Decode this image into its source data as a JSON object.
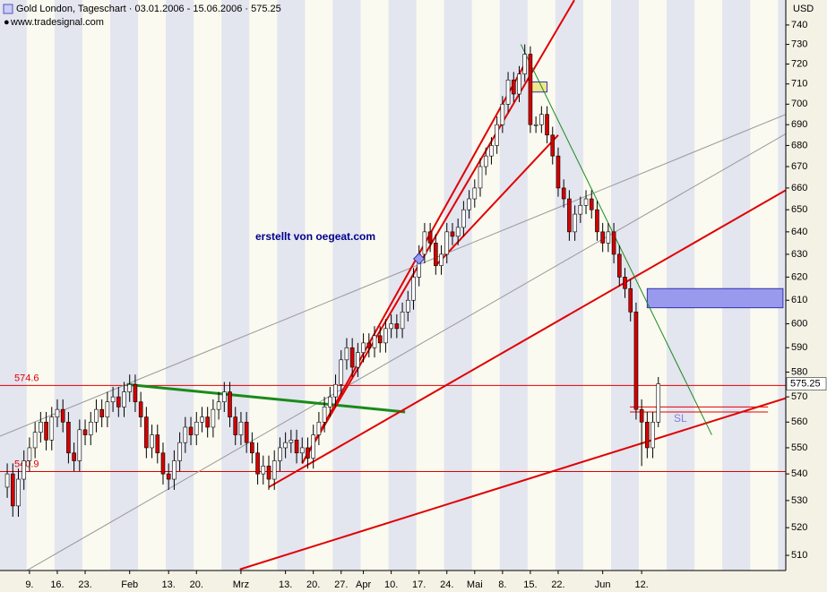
{
  "chart_data": {
    "type": "candlestick",
    "title": "Gold London, Tageschart · 03.01.2006 - 15.06.2006 · 575.25",
    "subtitle": "www.tradesignal.com",
    "y_axis_label": "USD",
    "annotations": [
      "erstellt von oegeat.com",
      "SL"
    ],
    "log_scale": true,
    "up_color": "#ffffff",
    "down_color": "#d40000",
    "wick_color": "#000000",
    "candles": {
      "open": [
        535,
        540,
        528,
        538,
        545,
        550,
        556,
        560,
        553,
        562,
        565,
        560,
        548,
        545,
        557,
        555,
        560,
        565,
        562,
        568,
        570,
        566,
        572,
        575,
        568,
        562,
        550,
        555,
        548,
        540,
        538,
        545,
        552,
        558,
        555,
        560,
        562,
        558,
        565,
        568,
        572,
        562,
        555,
        560,
        552,
        548,
        540,
        543,
        538,
        545,
        550,
        552,
        553,
        548,
        550,
        546,
        555,
        560,
        566,
        570,
        575,
        585,
        590,
        582,
        588,
        592,
        590,
        595,
        592,
        598,
        600,
        598,
        605,
        610,
        620,
        630,
        640,
        635,
        625,
        630,
        640,
        638,
        642,
        650,
        655,
        660,
        670,
        675,
        680,
        690,
        700,
        712,
        705,
        715,
        725,
        690,
        690,
        695,
        685,
        675,
        660,
        655,
        640,
        648,
        652,
        655,
        650,
        640,
        635,
        640,
        630,
        620,
        615,
        605,
        565,
        560,
        550,
        560
      ],
      "high": [
        544,
        544,
        542,
        549,
        554,
        560,
        564,
        564,
        566,
        569,
        569,
        564,
        552,
        561,
        561,
        564,
        569,
        569,
        572,
        574,
        574,
        576,
        579,
        579,
        572,
        566,
        559,
        559,
        552,
        544,
        549,
        556,
        562,
        562,
        564,
        566,
        566,
        569,
        572,
        576,
        576,
        566,
        564,
        564,
        556,
        552,
        547,
        547,
        549,
        554,
        556,
        557,
        557,
        554,
        554,
        559,
        564,
        570,
        574,
        579,
        589,
        594,
        594,
        592,
        596,
        596,
        599,
        599,
        602,
        604,
        604,
        609,
        614,
        624,
        634,
        644,
        644,
        639,
        634,
        644,
        644,
        646,
        654,
        659,
        664,
        674,
        679,
        684,
        694,
        704,
        716,
        716,
        719,
        730,
        729,
        694,
        699,
        699,
        689,
        679,
        664,
        659,
        652,
        656,
        659,
        659,
        654,
        644,
        644,
        644,
        634,
        624,
        619,
        609,
        569,
        564,
        564,
        578
      ],
      "low": [
        531,
        524,
        524,
        534,
        541,
        546,
        552,
        549,
        549,
        558,
        556,
        544,
        541,
        541,
        551,
        551,
        556,
        558,
        558,
        564,
        562,
        562,
        568,
        564,
        558,
        546,
        546,
        544,
        536,
        534,
        534,
        541,
        548,
        551,
        551,
        556,
        554,
        554,
        561,
        564,
        558,
        551,
        551,
        548,
        544,
        536,
        536,
        534,
        534,
        541,
        546,
        548,
        544,
        544,
        542,
        542,
        551,
        556,
        562,
        566,
        571,
        581,
        578,
        578,
        584,
        586,
        586,
        588,
        588,
        594,
        594,
        594,
        601,
        606,
        616,
        626,
        631,
        621,
        621,
        626,
        634,
        634,
        638,
        646,
        651,
        656,
        666,
        671,
        676,
        686,
        696,
        701,
        701,
        711,
        686,
        686,
        686,
        681,
        671,
        656,
        651,
        636,
        636,
        644,
        648,
        646,
        636,
        631,
        631,
        626,
        616,
        611,
        601,
        561,
        543,
        546,
        546,
        558
      ],
      "close": [
        540,
        528,
        538,
        545,
        550,
        556,
        560,
        553,
        562,
        565,
        560,
        548,
        545,
        557,
        555,
        560,
        565,
        562,
        568,
        570,
        566,
        572,
        575,
        568,
        562,
        550,
        555,
        548,
        540,
        538,
        545,
        552,
        558,
        555,
        560,
        562,
        558,
        565,
        568,
        572,
        562,
        555,
        560,
        552,
        548,
        540,
        543,
        538,
        545,
        550,
        552,
        553,
        548,
        550,
        546,
        555,
        560,
        566,
        570,
        575,
        585,
        590,
        582,
        588,
        592,
        590,
        595,
        592,
        598,
        600,
        598,
        605,
        610,
        620,
        630,
        640,
        635,
        625,
        630,
        640,
        638,
        642,
        650,
        655,
        660,
        670,
        675,
        680,
        690,
        700,
        712,
        705,
        715,
        725,
        690,
        690,
        695,
        685,
        675,
        660,
        655,
        640,
        648,
        652,
        655,
        650,
        640,
        635,
        640,
        630,
        620,
        615,
        605,
        565,
        560,
        550,
        560,
        575.25
      ]
    },
    "xlim": [
      -1.3,
      139.9
    ],
    "xticks": [
      {
        "value": 4,
        "label": "9."
      },
      {
        "value": 9,
        "label": "16."
      },
      {
        "value": 14,
        "label": "23."
      },
      {
        "value": 22,
        "label": "Feb"
      },
      {
        "value": 29,
        "label": "13."
      },
      {
        "value": 34,
        "label": "20."
      },
      {
        "value": 42,
        "label": "Mrz"
      },
      {
        "value": 50,
        "label": "13."
      },
      {
        "value": 55,
        "label": "20."
      },
      {
        "value": 60,
        "label": "27."
      },
      {
        "value": 64,
        "label": "Apr"
      },
      {
        "value": 69,
        "label": "10."
      },
      {
        "value": 74,
        "label": "17."
      },
      {
        "value": 79,
        "label": "24."
      },
      {
        "value": 84,
        "label": "Mai"
      },
      {
        "value": 89,
        "label": "8."
      },
      {
        "value": 94,
        "label": "15."
      },
      {
        "value": 99,
        "label": "22."
      },
      {
        "value": 107,
        "label": "Jun"
      },
      {
        "value": 114,
        "label": "12."
      }
    ],
    "ylim": [
      504.6,
      753.1
    ],
    "yticks": [
      510,
      520,
      530,
      540,
      550,
      560,
      570,
      580,
      590,
      600,
      610,
      620,
      630,
      640,
      650,
      660,
      670,
      680,
      690,
      700,
      710,
      720,
      730,
      740
    ],
    "levels": [
      574.6,
      540.9
    ],
    "level_color": "#e00000",
    "drawings": [
      {
        "color": "#999999",
        "width": 1,
        "points": [
          [
            -1.3,
            554.5
          ],
          [
            139.9,
            695
          ]
        ]
      },
      {
        "color": "#999999",
        "width": 1,
        "points": [
          [
            3.5,
            504.6
          ],
          [
            139.9,
            685.6
          ]
        ]
      },
      {
        "color": "#1a8a1a",
        "width": 3,
        "points": [
          [
            21.5,
            575
          ],
          [
            71.5,
            564
          ]
        ]
      },
      {
        "color": "#e00000",
        "width": 2,
        "points": [
          [
            41.8,
            505
          ],
          [
            139.9,
            569.5
          ]
        ]
      },
      {
        "color": "#e00000",
        "width": 2,
        "points": [
          [
            47,
            535
          ],
          [
            139.9,
            659
          ]
        ]
      },
      {
        "color": "#e00000",
        "width": 2,
        "points": [
          [
            53,
            544
          ],
          [
            101.9,
            753
          ]
        ]
      },
      {
        "color": "#e00000",
        "width": 2,
        "points": [
          [
            53,
            544
          ],
          [
            93,
            720
          ]
        ]
      },
      {
        "color": "#e00000",
        "width": 2,
        "points": [
          [
            77,
            625
          ],
          [
            99,
            685
          ]
        ]
      },
      {
        "color": "#1a8a1a",
        "width": 1,
        "points": [
          [
            92.3,
            730
          ],
          [
            126.6,
            555
          ]
        ]
      },
      {
        "color": "#e00000",
        "width": 1,
        "points": [
          [
            111.9,
            566
          ],
          [
            136.7,
            566
          ]
        ]
      },
      {
        "color": "#e00000",
        "width": 1,
        "points": [
          [
            111.9,
            564
          ],
          [
            136.7,
            564
          ]
        ]
      }
    ],
    "boxes": [
      {
        "color": "#9999ee",
        "x": [
          115,
          139.4
        ],
        "y": [
          606.8,
          615
        ]
      },
      {
        "color": "#f0e68c",
        "x": [
          94,
          97
        ],
        "y": [
          706,
          711
        ]
      }
    ],
    "markers": [
      {
        "color": "#9999ee",
        "x": 74,
        "y": 628
      }
    ]
  }
}
